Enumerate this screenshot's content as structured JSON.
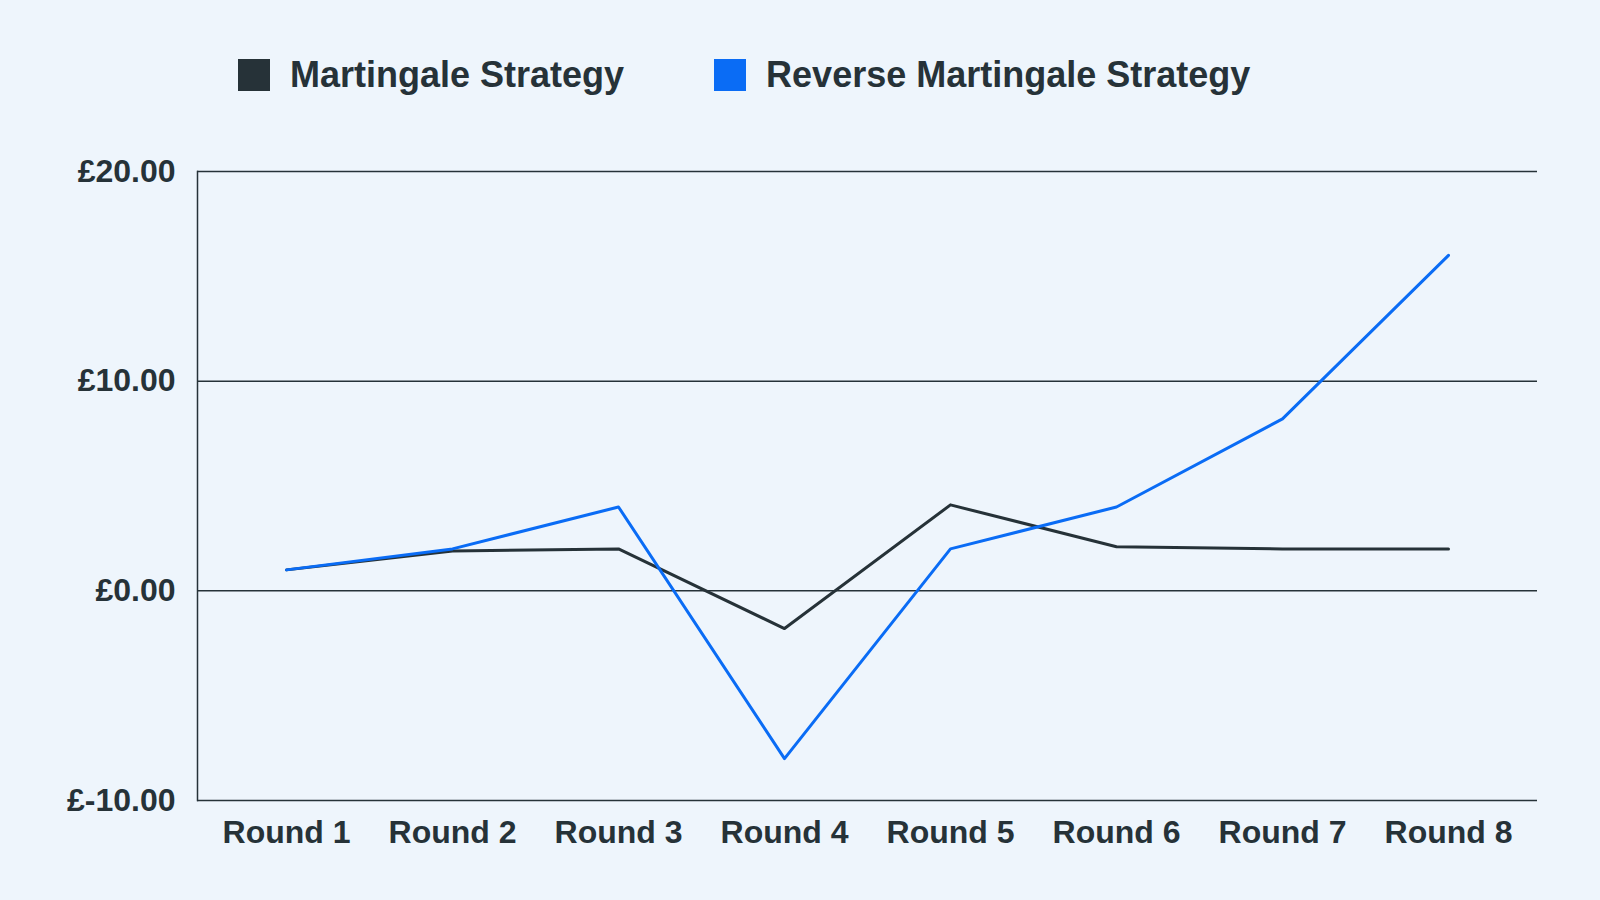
{
  "chart_data": {
    "type": "line",
    "categories": [
      "Round 1",
      "Round 2",
      "Round 3",
      "Round 4",
      "Round 5",
      "Round 6",
      "Round 7",
      "Round 8"
    ],
    "series": [
      {
        "name": "Martingale Strategy",
        "color": "#263238",
        "values": [
          1,
          1.9,
          2,
          -1.8,
          4.1,
          2.1,
          2,
          2
        ]
      },
      {
        "name": "Reverse Martingale Strategy",
        "color": "#0a6cf5",
        "values": [
          1,
          2,
          4,
          -8,
          2,
          4,
          8.2,
          16
        ]
      }
    ],
    "ylim": [
      -10,
      20
    ],
    "yticks": [
      {
        "value": -10,
        "label": "£-10.00"
      },
      {
        "value": 0,
        "label": "£0.00"
      },
      {
        "value": 10,
        "label": "£10.00"
      },
      {
        "value": 20,
        "label": "£20.00"
      }
    ],
    "grid": true,
    "legend": "top"
  }
}
